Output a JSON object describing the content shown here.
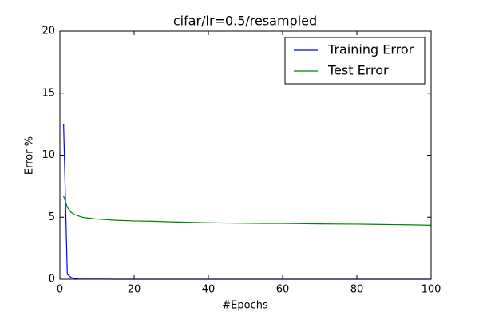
{
  "chart_data": {
    "type": "line",
    "title": "cifar/lr=0.5/resampled",
    "x_label": "#Epochs",
    "y_label": "Error %",
    "x": [
      1,
      2,
      3,
      4,
      5,
      6,
      7,
      8,
      9,
      10,
      15,
      20,
      25,
      30,
      35,
      40,
      45,
      50,
      55,
      60,
      65,
      70,
      75,
      80,
      85,
      90,
      95,
      100
    ],
    "series": [
      {
        "name": "Training Error",
        "color": "#0000ff",
        "values": [
          12.5,
          0.4,
          0.15,
          0.05,
          0.02,
          0.01,
          0.01,
          0.01,
          0.01,
          0.01,
          0,
          0,
          0,
          0,
          0,
          0,
          0,
          0,
          0,
          0,
          0,
          0,
          0,
          0,
          0,
          0,
          0,
          0
        ]
      },
      {
        "name": "Test Error",
        "color": "#008000",
        "values": [
          6.7,
          5.8,
          5.4,
          5.2,
          5.1,
          5.0,
          4.95,
          4.92,
          4.88,
          4.85,
          4.75,
          4.7,
          4.67,
          4.62,
          4.58,
          4.55,
          4.53,
          4.52,
          4.5,
          4.5,
          4.48,
          4.46,
          4.45,
          4.44,
          4.42,
          4.4,
          4.38,
          4.35
        ]
      }
    ],
    "xlim": [
      0,
      100
    ],
    "ylim": [
      0,
      20
    ],
    "xticks": [
      0,
      20,
      40,
      60,
      80,
      100
    ],
    "yticks": [
      0,
      5,
      10,
      15,
      20
    ],
    "grid": false,
    "legend_position": "upper-right"
  }
}
